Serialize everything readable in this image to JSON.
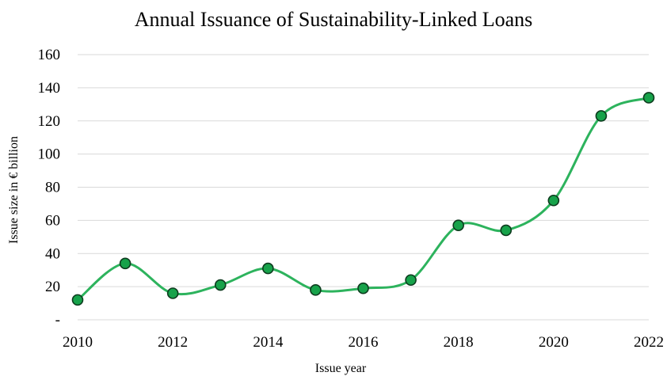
{
  "chart_data": {
    "type": "line",
    "title": "Annual Issuance of Sustainability-Linked Loans",
    "xlabel": "Issue year",
    "ylabel": "Issue size in € billion",
    "x": [
      2010,
      2011,
      2012,
      2013,
      2014,
      2015,
      2016,
      2017,
      2018,
      2019,
      2020,
      2021,
      2022
    ],
    "series": [
      {
        "values": [
          12,
          34,
          16,
          21,
          31,
          18,
          19,
          24,
          57,
          54,
          72,
          123,
          134
        ]
      }
    ],
    "xticks": [
      "2010",
      "2012",
      "2014",
      "2016",
      "2018",
      "2020",
      "2022"
    ],
    "yticks": [
      "-",
      "20",
      "40",
      "60",
      "80",
      "100",
      "120",
      "140",
      "160"
    ],
    "xlim": [
      2010,
      2022
    ],
    "ylim": [
      0,
      160
    ],
    "grid": "horizontal",
    "legend": "none",
    "colors": {
      "line": "#2db35d",
      "marker_fill": "#17a24a",
      "marker_stroke": "#0d3b1e"
    }
  }
}
